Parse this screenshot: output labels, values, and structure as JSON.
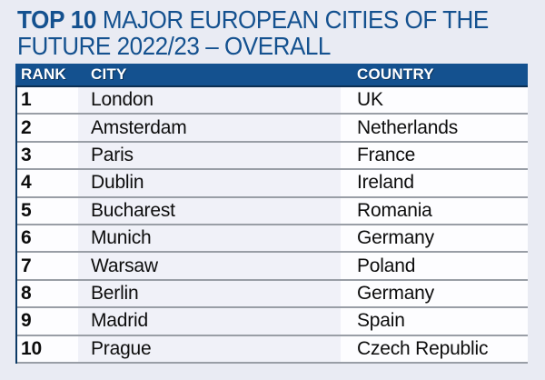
{
  "title": {
    "highlight": "TOP 10",
    "line1_rest": " MAJOR EUROPEAN CITIES OF THE",
    "line2": "FUTURE 2022/23 – OVERALL",
    "full": "TOP 10 MAJOR EUROPEAN CITIES OF THE FUTURE 2022/23 – OVERALL"
  },
  "table": {
    "columns": [
      "RANK",
      "CITY",
      "COUNTRY"
    ],
    "rows": [
      {
        "rank": "1",
        "city": "London",
        "country": "UK"
      },
      {
        "rank": "2",
        "city": "Amsterdam",
        "country": "Netherlands"
      },
      {
        "rank": "3",
        "city": "Paris",
        "country": "France"
      },
      {
        "rank": "4",
        "city": "Dublin",
        "country": "Ireland"
      },
      {
        "rank": "5",
        "city": "Bucharest",
        "country": "Romania"
      },
      {
        "rank": "6",
        "city": "Munich",
        "country": "Germany"
      },
      {
        "rank": "7",
        "city": "Warsaw",
        "country": "Poland"
      },
      {
        "rank": "8",
        "city": "Berlin",
        "country": "Germany"
      },
      {
        "rank": "9",
        "city": "Madrid",
        "country": "Spain"
      },
      {
        "rank": "10",
        "city": "Prague",
        "country": "Czech Republic"
      }
    ]
  },
  "colors": {
    "accent_navy": "#14518f",
    "header_border": "#0b2e52",
    "row_separator": "#999ea6",
    "city_column_bg": "#f0f1f8",
    "rank_country_bg": "#fdfdff",
    "page_bg": "#e9ebf3",
    "body_text": "#0d0d0d"
  },
  "chart_data": {
    "type": "table",
    "title": "TOP 10 MAJOR EUROPEAN CITIES OF THE FUTURE 2022/23 – OVERALL",
    "columns": [
      "RANK",
      "CITY",
      "COUNTRY"
    ],
    "rows": [
      [
        1,
        "London",
        "UK"
      ],
      [
        2,
        "Amsterdam",
        "Netherlands"
      ],
      [
        3,
        "Paris",
        "France"
      ],
      [
        4,
        "Dublin",
        "Ireland"
      ],
      [
        5,
        "Bucharest",
        "Romania"
      ],
      [
        6,
        "Munich",
        "Germany"
      ],
      [
        7,
        "Warsaw",
        "Poland"
      ],
      [
        8,
        "Berlin",
        "Germany"
      ],
      [
        9,
        "Madrid",
        "Spain"
      ],
      [
        10,
        "Prague",
        "Czech Republic"
      ]
    ]
  }
}
